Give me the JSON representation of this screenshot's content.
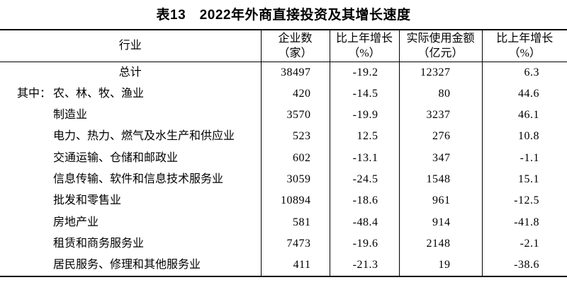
{
  "title": "表13　2022年外商直接投资及其增长速度",
  "table": {
    "columns": [
      {
        "label": "行业",
        "unit": ""
      },
      {
        "label": "企业数",
        "unit": "（家）"
      },
      {
        "label": "比上年增长",
        "unit": "（%）"
      },
      {
        "label": "实际使用金额",
        "unit": "（亿元）"
      },
      {
        "label": "比上年增长",
        "unit": "（%）"
      }
    ],
    "rows": [
      {
        "prefix": "",
        "name": "总计",
        "enterprises": "38497",
        "growth1": "-19.2",
        "amount": "12327",
        "growth2": "6.3"
      },
      {
        "prefix": "其中：",
        "name": "农、林、牧、渔业",
        "enterprises": "420",
        "growth1": "-14.5",
        "amount": "80",
        "growth2": "44.6"
      },
      {
        "prefix": "",
        "name": "制造业",
        "enterprises": "3570",
        "growth1": "-19.9",
        "amount": "3237",
        "growth2": "46.1"
      },
      {
        "prefix": "",
        "name": "电力、热力、燃气及水生产和供应业",
        "enterprises": "523",
        "growth1": "12.5",
        "amount": "276",
        "growth2": "10.8"
      },
      {
        "prefix": "",
        "name": "交通运输、仓储和邮政业",
        "enterprises": "602",
        "growth1": "-13.1",
        "amount": "347",
        "growth2": "-1.1"
      },
      {
        "prefix": "",
        "name": "信息传输、软件和信息技术服务业",
        "enterprises": "3059",
        "growth1": "-24.5",
        "amount": "1548",
        "growth2": "15.1"
      },
      {
        "prefix": "",
        "name": "批发和零售业",
        "enterprises": "10894",
        "growth1": "-18.6",
        "amount": "961",
        "growth2": "-12.5"
      },
      {
        "prefix": "",
        "name": "房地产业",
        "enterprises": "581",
        "growth1": "-48.4",
        "amount": "914",
        "grow2_note": "",
        "growth2": "-41.8"
      },
      {
        "prefix": "",
        "name": "租赁和商务服务业",
        "enterprises": "7473",
        "growth1": "-19.6",
        "amount": "2148",
        "growth2": "-2.1"
      },
      {
        "prefix": "",
        "name": "居民服务、修理和其他服务业",
        "enterprises": "411",
        "growth1": "-21.3",
        "amount": "19",
        "growth2": "-38.6"
      }
    ]
  },
  "chart_data": {
    "type": "table",
    "title": "表13　2022年外商直接投资及其增长速度",
    "columns": [
      "行业",
      "企业数（家）",
      "比上年增长（%）",
      "实际使用金额（亿元）",
      "比上年增长（%）"
    ],
    "rows": [
      [
        "总计",
        38497,
        -19.2,
        12327,
        6.3
      ],
      [
        "其中：农、林、牧、渔业",
        420,
        -14.5,
        80,
        44.6
      ],
      [
        "制造业",
        3570,
        -19.9,
        3237,
        46.1
      ],
      [
        "电力、热力、燃气及水生产和供应业",
        523,
        12.5,
        276,
        10.8
      ],
      [
        "交通运输、仓储和邮政业",
        602,
        -13.1,
        347,
        -1.1
      ],
      [
        "信息传输、软件和信息技术服务业",
        3059,
        -24.5,
        1548,
        15.1
      ],
      [
        "批发和零售业",
        10894,
        -18.6,
        961,
        -12.5
      ],
      [
        "房地产业",
        581,
        -48.4,
        914,
        -41.8
      ],
      [
        "租赁和商务服务业",
        7473,
        -19.6,
        2148,
        -2.1
      ],
      [
        "居民服务、修理和其他服务业",
        411,
        -21.3,
        19,
        -38.6
      ]
    ]
  }
}
